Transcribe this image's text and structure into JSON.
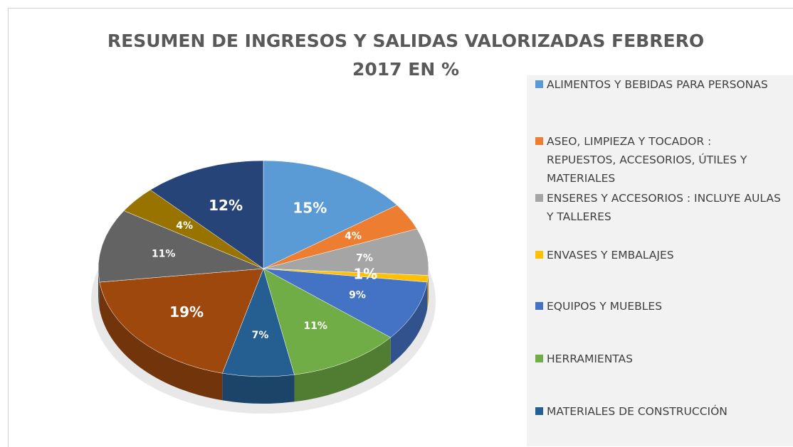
{
  "chart_data": {
    "type": "pie",
    "title": "RESUMEN DE INGRESOS Y SALIDAS VALORIZADAS FEBRERO 2017 EN %",
    "categories": [
      "ALIMENTOS Y BEBIDAS PARA PERSONAS",
      "ASEO, LIMPIEZA Y TOCADOR : REPUESTOS, ACCESORIOS, ÚTILES Y MATERIALES",
      "ENSERES Y ACCESORIOS : INCLUYE AULAS Y TALLERES",
      "ENVASES Y EMBALAJES",
      "EQUIPOS Y MUEBLES",
      "HERRAMIENTAS",
      "MATERIALES DE CONSTRUCCIÓN",
      null,
      null,
      null,
      null
    ],
    "values": [
      15,
      4,
      7,
      1,
      9,
      11,
      7,
      19,
      11,
      4,
      12
    ],
    "value_labels": [
      "15%",
      "4%",
      "7%",
      "1%",
      "9%",
      "11%",
      "7%",
      "19%",
      "11%",
      "4%",
      "12%"
    ],
    "colors": [
      "#5b9bd5",
      "#ed7d31",
      "#a5a5a5",
      "#ffc000",
      "#4472c4",
      "#70ad47",
      "#255e91",
      "#9e480e",
      "#636363",
      "#997300",
      "#264478"
    ],
    "legend": "right"
  }
}
